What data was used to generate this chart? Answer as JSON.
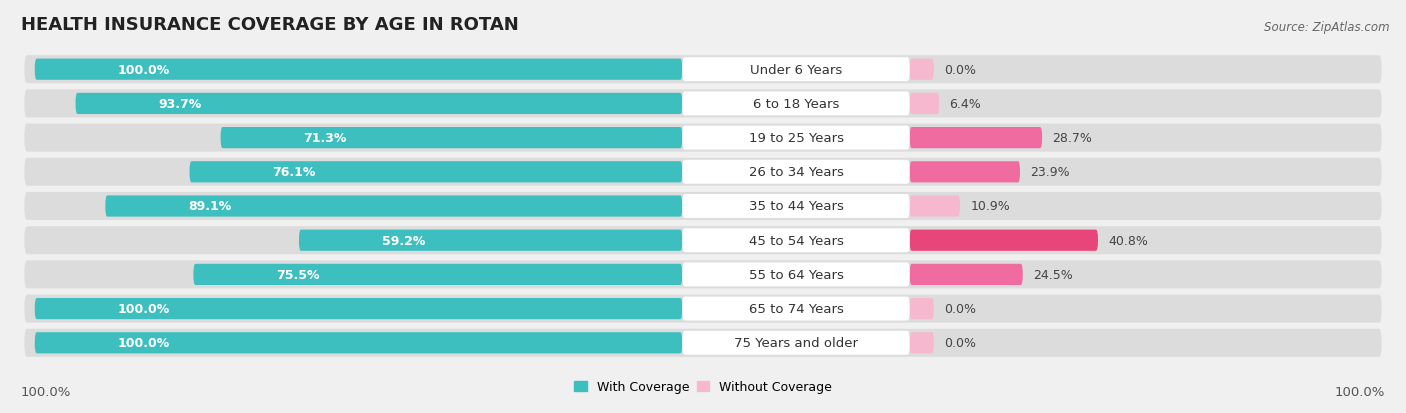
{
  "title": "HEALTH INSURANCE COVERAGE BY AGE IN ROTAN",
  "source": "Source: ZipAtlas.com",
  "categories": [
    "Under 6 Years",
    "6 to 18 Years",
    "19 to 25 Years",
    "26 to 34 Years",
    "35 to 44 Years",
    "45 to 54 Years",
    "55 to 64 Years",
    "65 to 74 Years",
    "75 Years and older"
  ],
  "with_coverage": [
    100.0,
    93.7,
    71.3,
    76.1,
    89.1,
    59.2,
    75.5,
    100.0,
    100.0
  ],
  "without_coverage": [
    0.0,
    6.4,
    28.7,
    23.9,
    10.9,
    40.8,
    24.5,
    0.0,
    0.0
  ],
  "with_color": "#3DBFBF",
  "without_colors": [
    "#F5B8CF",
    "#F5B8CF",
    "#F06BA0",
    "#F06BA0",
    "#F5B8CF",
    "#E8457A",
    "#F06BA0",
    "#F5B8CF",
    "#F5B8CF"
  ],
  "background_color": "#f0f0f0",
  "row_bg_color": "#dcdcdc",
  "label_box_color": "#ffffff",
  "title_fontsize": 13,
  "label_fontsize": 9.5,
  "bar_label_fontsize": 9,
  "legend_fontsize": 9,
  "source_fontsize": 8.5,
  "x_axis_label_pct": "100.0%",
  "figsize": [
    14.06,
    4.14
  ],
  "dpi": 100
}
